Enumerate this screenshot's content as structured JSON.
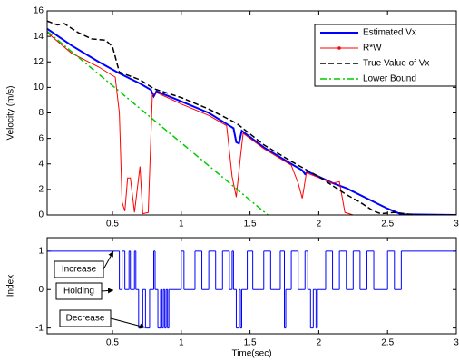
{
  "chart_data": [
    {
      "type": "line",
      "ylabel": "Velocity (m/s)",
      "xlim": [
        0.025,
        3
      ],
      "xticks": [
        0.5,
        1,
        1.5,
        2,
        2.5,
        3
      ],
      "ylim": [
        0,
        16
      ],
      "yticks": [
        0,
        2,
        4,
        6,
        8,
        10,
        12,
        14,
        16
      ],
      "grid": false,
      "legend": "northeast",
      "series": [
        {
          "name": "Estimated Vx",
          "color": "#0000ff",
          "linestyle": "-",
          "width": 2,
          "x": [
            0.025,
            0.2,
            0.4,
            0.55,
            0.7,
            0.78,
            0.8,
            0.82,
            1.0,
            1.2,
            1.38,
            1.4,
            1.42,
            1.44,
            1.6,
            1.8,
            1.88,
            1.9,
            1.92,
            2.1,
            2.2,
            2.35,
            2.5,
            2.6,
            3
          ],
          "values": [
            14.6,
            13.3,
            12,
            11.1,
            10.3,
            9.8,
            9.3,
            9.7,
            8.9,
            8.0,
            6.8,
            5.7,
            5.6,
            6.6,
            5.3,
            4.0,
            3.5,
            3.2,
            3.4,
            2.5,
            2.1,
            1.3,
            0.5,
            0.05,
            0
          ]
        },
        {
          "name": "R*W",
          "color": "#ff0000",
          "linestyle": "-",
          "width": 1,
          "x": [
            0.025,
            0.2,
            0.4,
            0.52,
            0.55,
            0.57,
            0.59,
            0.61,
            0.63,
            0.66,
            0.7,
            0.72,
            0.76,
            0.79,
            0.82,
            1.0,
            1.2,
            1.33,
            1.37,
            1.4,
            1.43,
            1.45,
            1.6,
            1.8,
            1.85,
            1.88,
            1.91,
            2.1,
            2.15,
            2.19,
            2.25,
            3
          ],
          "values": [
            14.3,
            12.7,
            11.6,
            10.8,
            8,
            1,
            0.3,
            2.9,
            2.9,
            0.2,
            3.8,
            0.1,
            0.2,
            9.4,
            9.6,
            8.7,
            7.8,
            7,
            3,
            1.4,
            4.5,
            6.4,
            5.2,
            3.9,
            2.5,
            1.3,
            3.3,
            2.5,
            2.6,
            0.2,
            0,
            0
          ]
        },
        {
          "name": "True Value of Vx",
          "color": "#000000",
          "linestyle": "--",
          "width": 1.5,
          "x": [
            0.025,
            0.1,
            0.15,
            0.25,
            0.35,
            0.45,
            0.5,
            0.55,
            0.7,
            0.8,
            1.0,
            1.2,
            1.4,
            1.6,
            1.8,
            2.0,
            2.2,
            2.3,
            2.4,
            2.45,
            2.55,
            2.7,
            3
          ],
          "values": [
            15.2,
            14.9,
            15,
            14.3,
            13.8,
            13.7,
            13.2,
            11.2,
            10.6,
            9.9,
            9.2,
            8.3,
            7.2,
            5.5,
            4.2,
            3.0,
            1.6,
            1.0,
            0.3,
            0.1,
            0.2,
            0,
            0
          ]
        },
        {
          "name": "Lower Bound",
          "color": "#00cc00",
          "linestyle": "-.",
          "width": 1.5,
          "x": [
            0.025,
            1.63
          ],
          "values": [
            14.4,
            0
          ]
        }
      ]
    },
    {
      "type": "step",
      "xlabel": "Time(sec)",
      "ylabel": "Index",
      "xlim": [
        0.025,
        3
      ],
      "xticks": [
        0.5,
        1,
        1.5,
        2,
        2.5,
        3
      ],
      "ylim": [
        -1.15,
        1.35
      ],
      "yticks": [
        -1,
        0,
        1
      ],
      "grid": false,
      "series": [
        {
          "color": "#0000ff",
          "linestyle": "-",
          "width": 1,
          "x": [
            0.025,
            0.55,
            0.57,
            0.59,
            0.62,
            0.63,
            0.66,
            0.67,
            0.69,
            0.72,
            0.74,
            0.77,
            0.8,
            0.81,
            0.83,
            0.85,
            0.86,
            0.87,
            0.88,
            0.89,
            0.9,
            0.91,
            1.0,
            1.02,
            1.1,
            1.15,
            1.2,
            1.25,
            1.3,
            1.35,
            1.37,
            1.38,
            1.4,
            1.42,
            1.43,
            1.44,
            1.48,
            1.52,
            1.6,
            1.65,
            1.72,
            1.75,
            1.76,
            1.8,
            1.85,
            1.9,
            1.92,
            1.94,
            1.96,
            1.98,
            1.99,
            2.05,
            2.1,
            2.15,
            2.2,
            2.25,
            2.3,
            2.35,
            2.4,
            2.5,
            2.55,
            2.6,
            3
          ],
          "values": [
            1,
            0,
            1,
            0,
            1,
            0,
            1,
            0,
            -1,
            0,
            -1,
            0,
            1,
            0,
            -1,
            0,
            -1,
            0,
            -1,
            0,
            -1,
            0,
            1,
            0,
            1,
            0,
            1,
            0,
            1,
            0,
            1,
            0,
            -1,
            0,
            -1,
            0,
            1,
            0,
            1,
            0,
            1,
            -1,
            0,
            1,
            0,
            1,
            0,
            -1,
            0,
            -1,
            0,
            1,
            0,
            1,
            0,
            1,
            0,
            1,
            0,
            1,
            0,
            1,
            1
          ]
        }
      ],
      "annotations": [
        "Increase",
        "Holding",
        "Decrease"
      ]
    }
  ]
}
